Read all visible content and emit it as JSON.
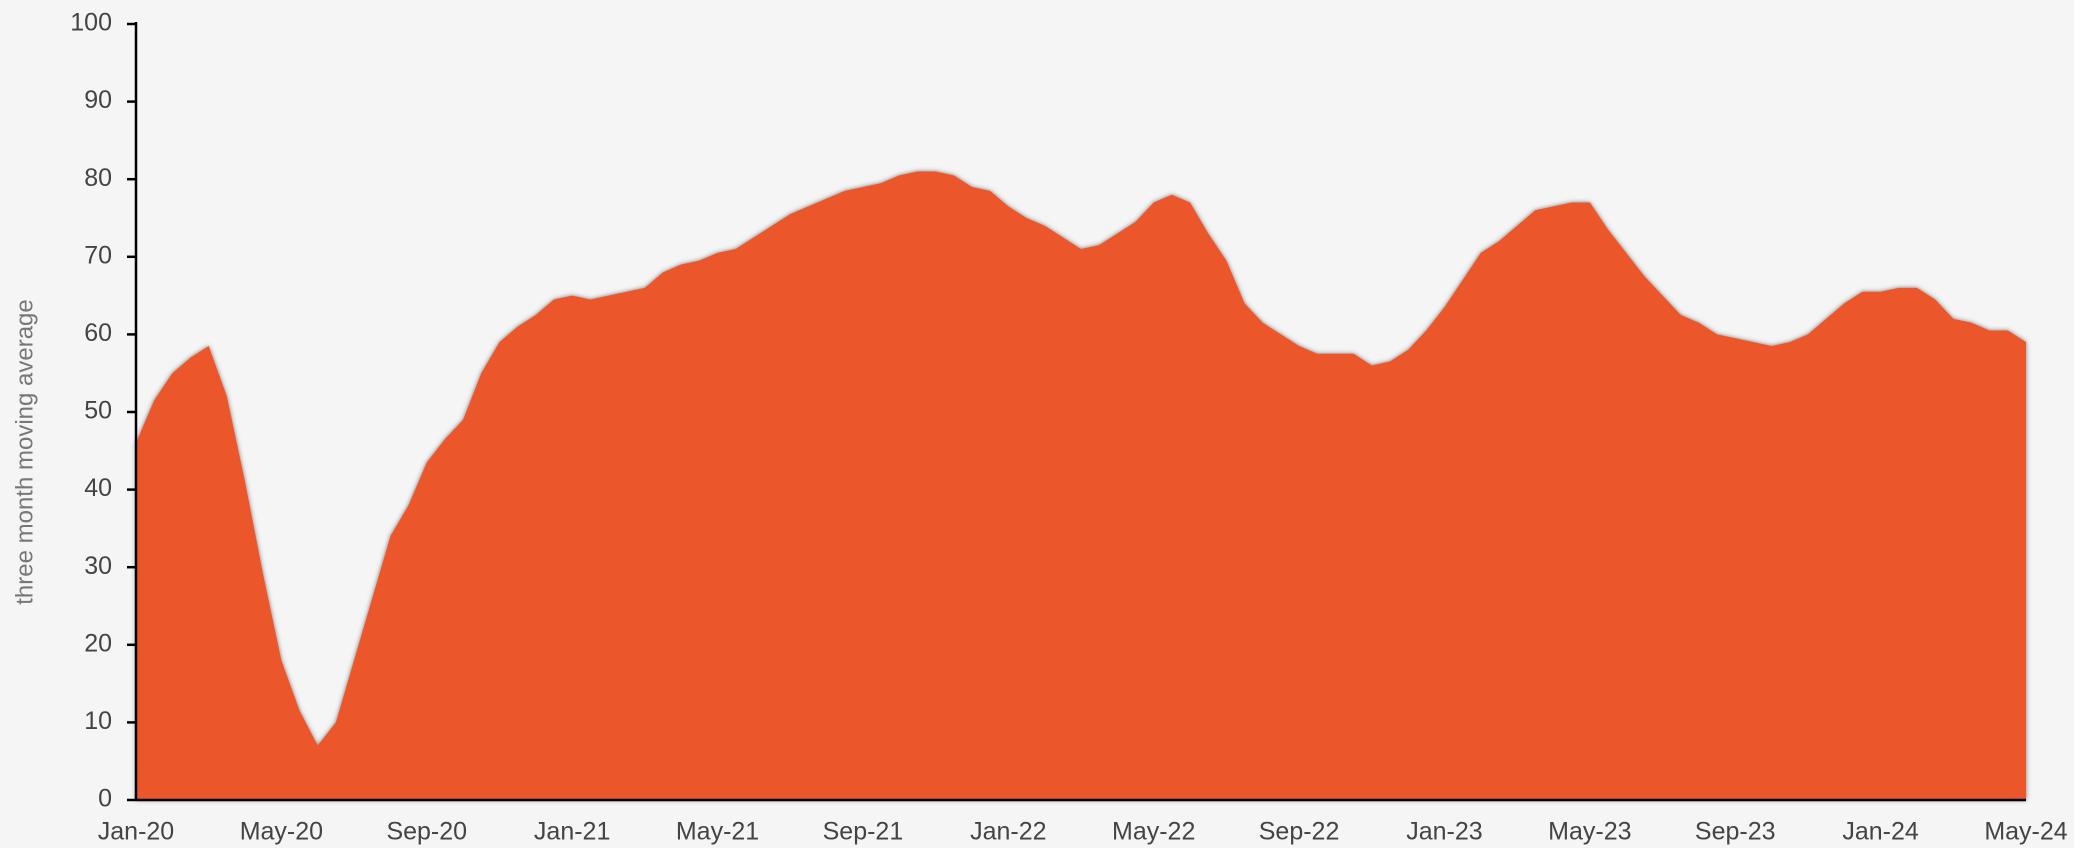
{
  "chart_data": {
    "type": "area",
    "y_label": "three month moving average",
    "categories": [
      "Jan-20",
      null,
      null,
      null,
      null,
      null,
      null,
      null,
      "May-20",
      null,
      null,
      null,
      null,
      null,
      null,
      null,
      "Sep-20",
      null,
      null,
      null,
      null,
      null,
      null,
      null,
      "Jan-21",
      null,
      null,
      null,
      null,
      null,
      null,
      null,
      "May-21",
      null,
      null,
      null,
      null,
      null,
      null,
      null,
      "Sep-21",
      null,
      null,
      null,
      null,
      null,
      null,
      null,
      "Jan-22",
      null,
      null,
      null,
      null,
      null,
      null,
      null,
      "May-22",
      null,
      null,
      null,
      null,
      null,
      null,
      null,
      "Sep-22",
      null,
      null,
      null,
      null,
      null,
      null,
      null,
      "Jan-23",
      null,
      null,
      null,
      null,
      null,
      null,
      null,
      "May-23",
      null,
      null,
      null,
      null,
      null,
      null,
      null,
      "Sep-23",
      null,
      null,
      null,
      null,
      null,
      null,
      null,
      "Jan-24",
      null,
      null,
      null,
      null,
      null,
      null,
      null,
      "May-24"
    ],
    "values": [
      46,
      51.5,
      55,
      57,
      58.5,
      52,
      41,
      29,
      18,
      11.5,
      7,
      10,
      18,
      26,
      34,
      38,
      43.5,
      46.5,
      49,
      55,
      59,
      61,
      62.5,
      64.5,
      65,
      64.5,
      65,
      65.5,
      66,
      68,
      69,
      69.5,
      70.5,
      71,
      72.5,
      74,
      75.5,
      76.5,
      77.5,
      78.5,
      79,
      79.5,
      80.5,
      81,
      81,
      80.5,
      79,
      78.5,
      76.5,
      75,
      74,
      72.5,
      71,
      71.5,
      73,
      74.5,
      77,
      78,
      77,
      73,
      69.5,
      64,
      61.5,
      60,
      58.5,
      57.5,
      57.5,
      57.5,
      56,
      56.5,
      58,
      60.5,
      63.5,
      67,
      70.5,
      72,
      74,
      76,
      76.5,
      77,
      77,
      73.5,
      70.5,
      67.5,
      65,
      62.5,
      61.5,
      60,
      59.5,
      59,
      58.5,
      59,
      60,
      62,
      64,
      65.5,
      65.5,
      66,
      66,
      64.5,
      62,
      61.5,
      60.5,
      60.5,
      59
    ],
    "color": "#eb5629",
    "ylim": [
      0,
      100
    ],
    "yticks": [
      0,
      10,
      20,
      30,
      40,
      50,
      60,
      70,
      80,
      90,
      100
    ],
    "grid": false
  }
}
